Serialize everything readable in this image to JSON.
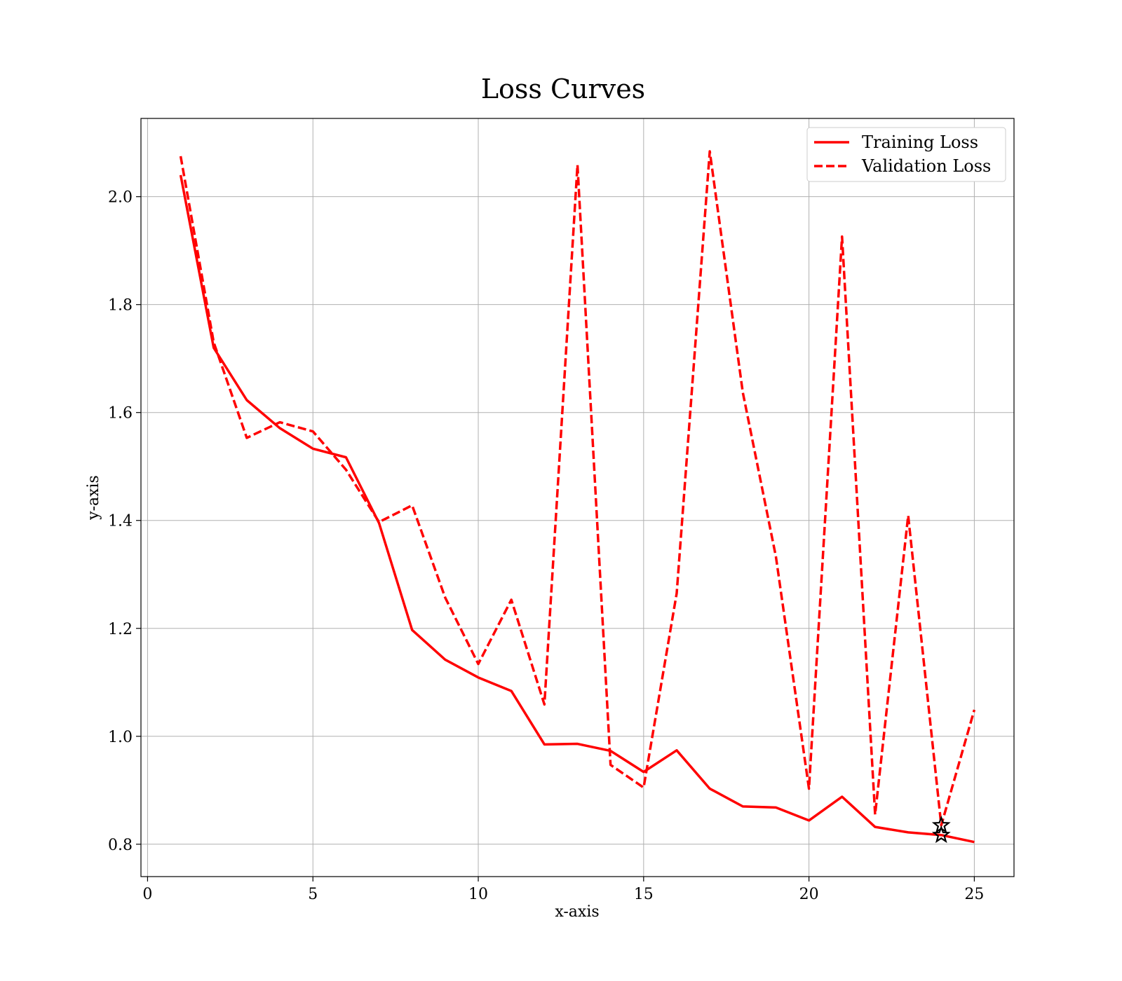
{
  "chart_data": {
    "type": "line",
    "title": "Loss Curves",
    "xlabel": "x-axis",
    "ylabel": "y-axis",
    "xlim": [
      -0.2,
      26.2
    ],
    "ylim": [
      0.74,
      2.145
    ],
    "xticks": [
      0,
      5,
      10,
      15,
      20,
      25
    ],
    "xtick_labels": [
      "0",
      "5",
      "10",
      "15",
      "20",
      "25"
    ],
    "yticks": [
      0.8,
      1.0,
      1.2,
      1.4,
      1.6,
      1.8,
      2.0
    ],
    "ytick_labels": [
      "0.8",
      "1.0",
      "1.2",
      "1.4",
      "1.6",
      "1.8",
      "2.0"
    ],
    "grid": true,
    "legend_position": "top-right",
    "x": [
      1,
      2,
      3,
      4,
      5,
      6,
      7,
      8,
      9,
      10,
      11,
      12,
      13,
      14,
      15,
      16,
      17,
      18,
      19,
      20,
      21,
      22,
      23,
      24,
      25
    ],
    "series": [
      {
        "name": "Training Loss",
        "style": "solid",
        "color": "#ff0000",
        "values": [
          2.04,
          1.72,
          1.623,
          1.571,
          1.533,
          1.517,
          1.395,
          1.197,
          1.142,
          1.109,
          1.084,
          0.985,
          0.986,
          0.973,
          0.934,
          0.974,
          0.903,
          0.87,
          0.868,
          0.844,
          0.888,
          0.832,
          0.822,
          0.817,
          0.804
        ]
      },
      {
        "name": "Validation Loss",
        "style": "dashed",
        "color": "#ff0000",
        "values": [
          2.075,
          1.73,
          1.553,
          1.582,
          1.565,
          1.494,
          1.397,
          1.428,
          1.257,
          1.134,
          1.253,
          1.059,
          2.059,
          0.947,
          0.905,
          1.265,
          2.084,
          1.637,
          1.333,
          0.903,
          1.926,
          0.855,
          1.409,
          0.835,
          1.049
        ]
      }
    ],
    "markers": [
      {
        "type": "star",
        "color": "#000000",
        "x": 24,
        "y": 0.835
      },
      {
        "type": "star",
        "color": "#000000",
        "x": 24,
        "y": 0.817
      }
    ]
  }
}
